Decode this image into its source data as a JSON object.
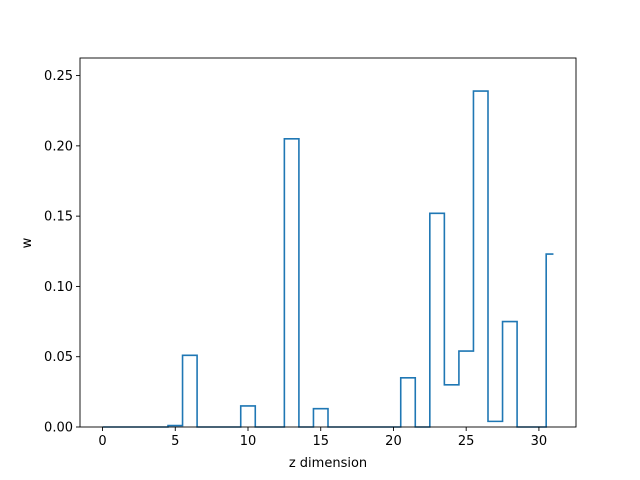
{
  "chart_data": {
    "type": "line",
    "style": "step",
    "title": "",
    "xlabel": "z dimension",
    "ylabel": "w",
    "xlim": [
      -1.55,
      32.55
    ],
    "ylim": [
      0,
      0.2625
    ],
    "xticks": [
      0,
      5,
      10,
      15,
      20,
      25,
      30
    ],
    "xtick_labels": [
      "0",
      "5",
      "10",
      "15",
      "20",
      "25",
      "30"
    ],
    "yticks": [
      0.0,
      0.05,
      0.1,
      0.15,
      0.2,
      0.25
    ],
    "ytick_labels": [
      "0.00",
      "0.05",
      "0.10",
      "0.15",
      "0.20",
      "0.25"
    ],
    "grid": false,
    "series": [
      {
        "color": "#1f77b4",
        "x": [
          0,
          1,
          2,
          3,
          4,
          5,
          6,
          7,
          8,
          9,
          10,
          11,
          12,
          13,
          14,
          15,
          16,
          17,
          18,
          19,
          20,
          21,
          22,
          23,
          24,
          25,
          26,
          27,
          28,
          29,
          30,
          31
        ],
        "y": [
          0,
          0,
          0,
          0,
          0,
          0.001,
          0.051,
          0,
          0,
          0,
          0.015,
          0,
          0,
          0.205,
          0,
          0.013,
          0,
          0,
          0,
          0,
          0,
          0.035,
          0,
          0.152,
          0.03,
          0.054,
          0.239,
          0.004,
          0.075,
          0,
          0,
          0.123
        ]
      }
    ]
  }
}
